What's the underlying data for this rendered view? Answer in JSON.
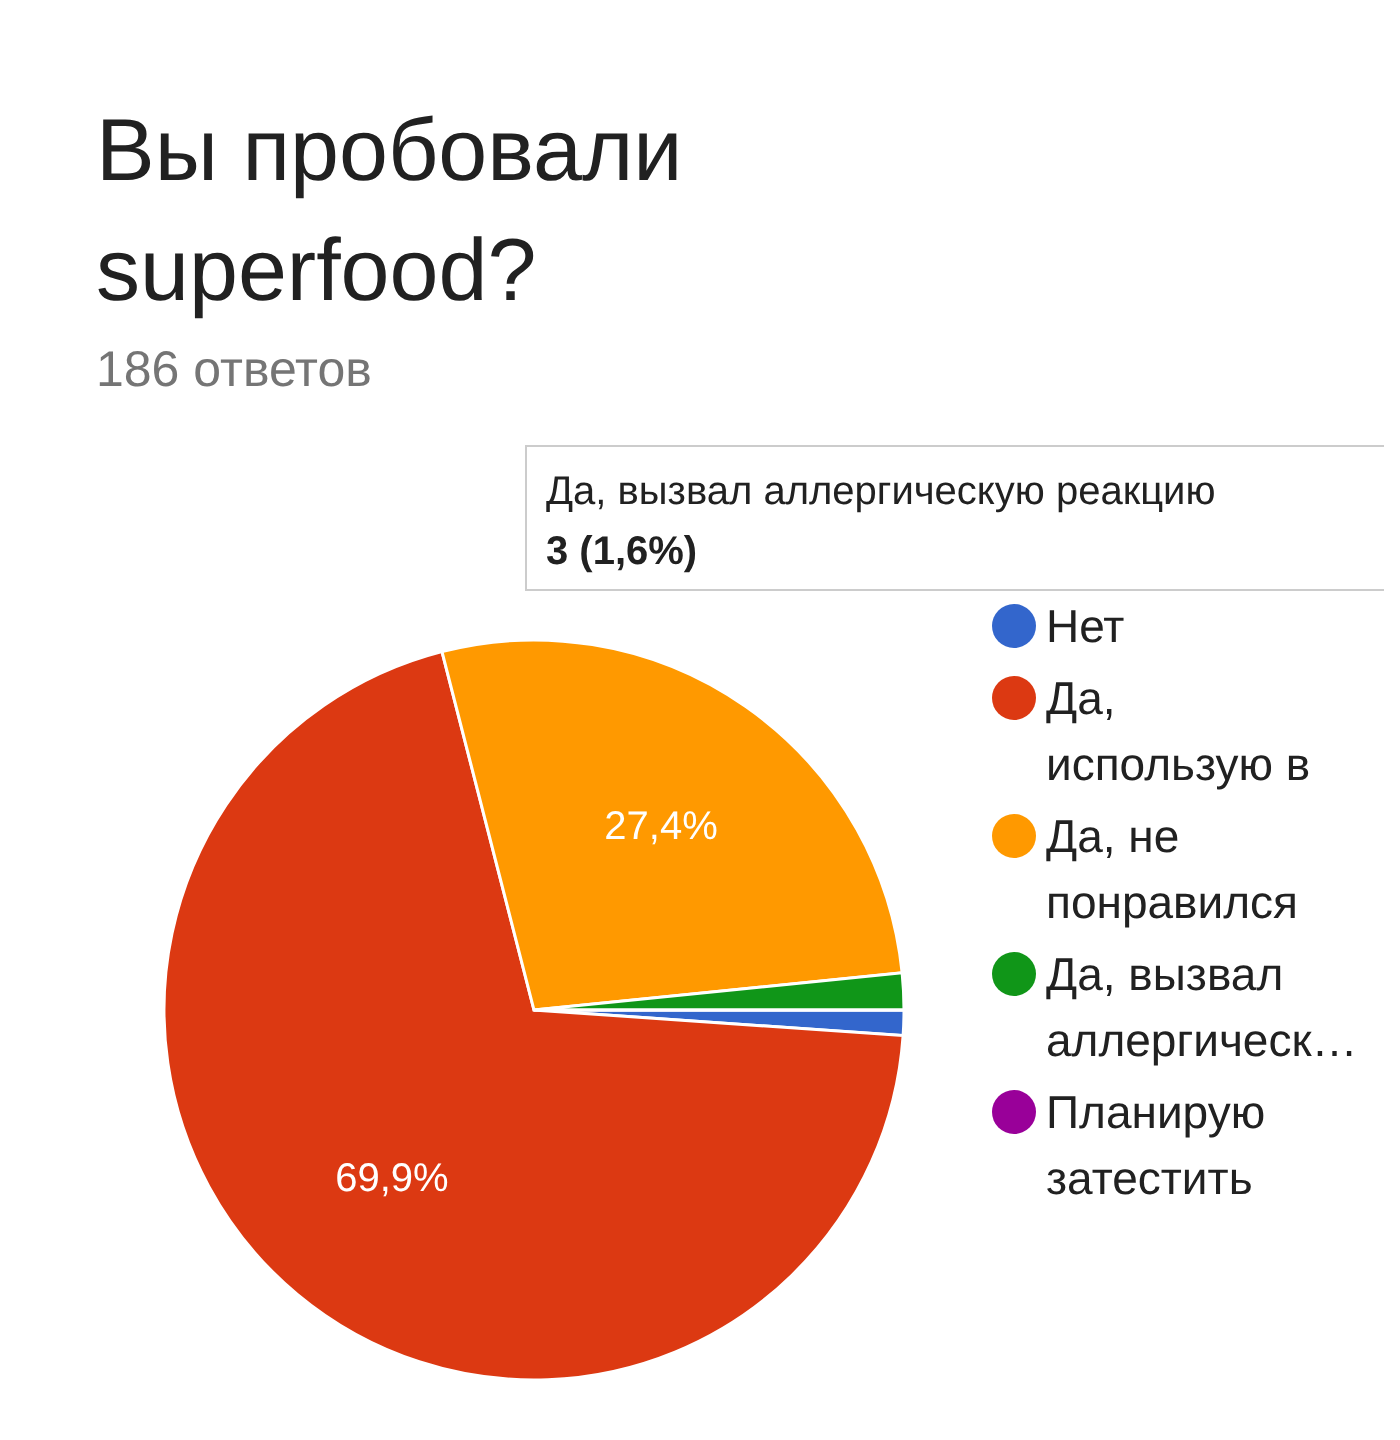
{
  "chart_data": {
    "type": "pie",
    "title": "Вы пробовали superfood?",
    "subtitle": "186 ответов",
    "categories": [
      "Нет",
      "Да, использую в",
      "Да, не понравился",
      "Да, вызвал аллергическ…",
      "Планирую затестить"
    ],
    "values": [
      1.1,
      69.9,
      27.4,
      1.6,
      0
    ],
    "colors": [
      "#3366cc",
      "#dc3912",
      "#ff9900",
      "#109618",
      "#990099"
    ],
    "value_labels": [
      null,
      "69,9%",
      "27,4%",
      null,
      null
    ],
    "annotations": [
      "Да, вызвал аллергическую реакцию",
      "3 (1,6%)"
    ],
    "legend": "right"
  }
}
